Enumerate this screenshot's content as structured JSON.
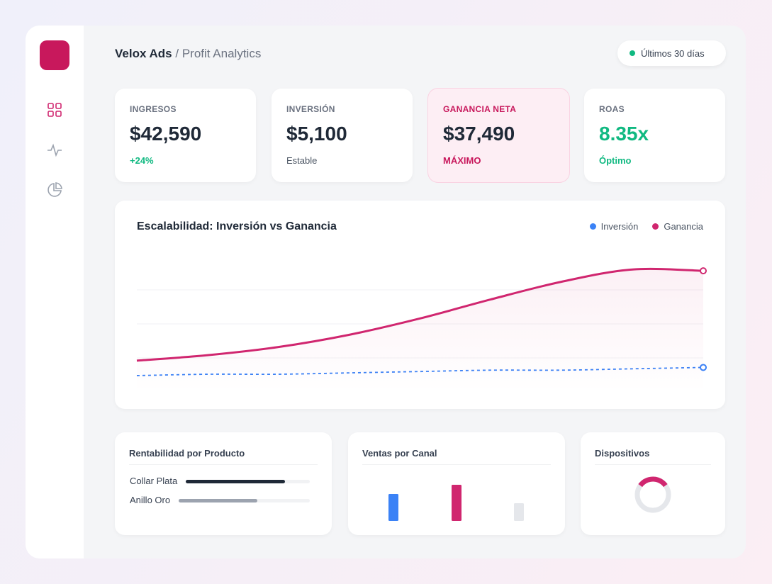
{
  "header": {
    "brand": "Velox Ads",
    "separator": "/",
    "page": "Profit Analytics",
    "period": "Últimos 30 días"
  },
  "kpis": [
    {
      "label": "INGRESOS",
      "value": "$42,590",
      "note": "+24%"
    },
    {
      "label": "INVERSIÓN",
      "value": "$5,100",
      "note": "Estable"
    },
    {
      "label": "GANANCIA NETA",
      "value": "$37,490",
      "note": "MÁXIMO"
    },
    {
      "label": "ROAS",
      "value": "8.35x",
      "note": "Óptimo"
    }
  ],
  "chart_data": {
    "type": "line",
    "title": "Escalabilidad: Inversión vs Ganancia",
    "categories": [
      null,
      null,
      null,
      null,
      null,
      null,
      null,
      null,
      null
    ],
    "ylim": [
      0,
      100
    ],
    "series": [
      {
        "name": "Inversión",
        "color": "#3b82f6",
        "values": [
          12,
          13,
          13,
          14,
          15,
          16,
          16,
          17,
          18
        ]
      },
      {
        "name": "Ganancia",
        "color": "#d0266f",
        "values": [
          23,
          27,
          33,
          42,
          54,
          68,
          81,
          90,
          89
        ]
      }
    ]
  },
  "panels": {
    "products": {
      "title": "Rentabilidad por Producto",
      "items": [
        {
          "name": "Collar Plata",
          "value": 80,
          "color": "#1f2937"
        },
        {
          "name": "Anillo Oro",
          "value": 60,
          "color": "#9ca3af"
        }
      ]
    },
    "channels": {
      "title": "Ventas por Canal",
      "values": [
        38,
        51,
        25
      ],
      "colors": [
        "#3b82f6",
        "#d0266f",
        "#e5e7eb"
      ],
      "ylim": [
        0,
        60
      ]
    },
    "devices": {
      "title": "Dispositivos",
      "value": 30,
      "color": "#d0266f"
    }
  }
}
